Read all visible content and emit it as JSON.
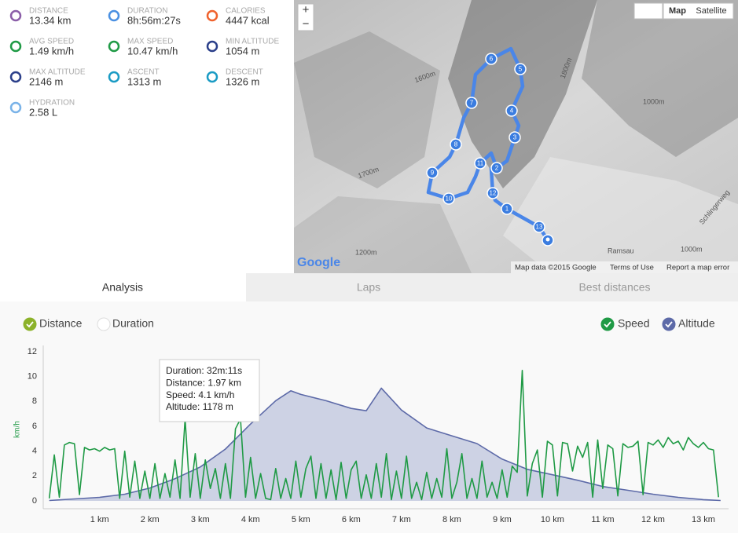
{
  "stats": [
    {
      "label": "DISTANCE",
      "value": "13.34 km"
    },
    {
      "label": "DURATION",
      "value": "8h:56m:27s"
    },
    {
      "label": "CALORIES",
      "value": "4447 kcal"
    },
    {
      "label": "AVG SPEED",
      "value": "1.49 km/h"
    },
    {
      "label": "MAX SPEED",
      "value": "10.47 km/h"
    },
    {
      "label": "MIN ALTITUDE",
      "value": "1054 m"
    },
    {
      "label": "MAX ALTITUDE",
      "value": "2146 m"
    },
    {
      "label": "ASCENT",
      "value": "1313 m"
    },
    {
      "label": "DESCENT",
      "value": "1326 m"
    },
    {
      "label": "HYDRATION",
      "value": "2.58 L"
    }
  ],
  "map": {
    "zoom_in": "+",
    "zoom_out": "−",
    "types": [
      "Map",
      "Satellite"
    ],
    "logo": "Google",
    "attribution": [
      "Map data ©2015 Google",
      "Terms of Use",
      "Report a map error"
    ],
    "place_labels": [
      "Ramsau",
      "Schlingerweg",
      "1000m",
      "1200m",
      "1600m",
      "1800m",
      "1700m",
      "1000m"
    ],
    "markers": [
      "1",
      "2",
      "3",
      "4",
      "5",
      "6",
      "7",
      "8",
      "9",
      "10",
      "11",
      "12",
      "13"
    ]
  },
  "tabs": [
    "Analysis",
    "Laps",
    "Best distances"
  ],
  "chart_data": {
    "type": "line",
    "x_modes": [
      "Distance",
      "Duration"
    ],
    "ylabel": "km/h",
    "xlim": [
      -0.12,
      13.5
    ],
    "xticks": [
      {
        "value": 1,
        "label": "1 km"
      },
      {
        "value": 2,
        "label": "2 km"
      },
      {
        "value": 3,
        "label": "3 km"
      },
      {
        "value": 4,
        "label": "4 km"
      },
      {
        "value": 5,
        "label": "5 km"
      },
      {
        "value": 6,
        "label": "6 km"
      },
      {
        "value": 7,
        "label": "7 km"
      },
      {
        "value": 8,
        "label": "8 km"
      },
      {
        "value": 9,
        "label": "9 km"
      },
      {
        "value": 10,
        "label": "10 km"
      },
      {
        "value": 11,
        "label": "11 km"
      },
      {
        "value": 12,
        "label": "12 km"
      },
      {
        "value": 13,
        "label": "13 km"
      }
    ],
    "ylim": [
      0,
      12
    ],
    "yticks": [
      0,
      2,
      4,
      6,
      8,
      10,
      12
    ],
    "y2lim": [
      1050,
      2500
    ],
    "grid": false,
    "series": [
      {
        "name": "Speed",
        "color": "#1f9a45",
        "axis": "y",
        "x": [
          0,
          0.1,
          0.2,
          0.3,
          0.4,
          0.5,
          0.6,
          0.7,
          0.8,
          0.9,
          1,
          1.1,
          1.2,
          1.3,
          1.4,
          1.5,
          1.6,
          1.7,
          1.8,
          1.9,
          2,
          2.1,
          2.2,
          2.3,
          2.4,
          2.5,
          2.6,
          2.7,
          2.8,
          2.9,
          3,
          3.1,
          3.2,
          3.3,
          3.4,
          3.5,
          3.6,
          3.7,
          3.8,
          3.9,
          4,
          4.1,
          4.2,
          4.3,
          4.4,
          4.5,
          4.6,
          4.7,
          4.8,
          4.9,
          5,
          5.1,
          5.2,
          5.3,
          5.4,
          5.5,
          5.6,
          5.7,
          5.8,
          5.9,
          6,
          6.1,
          6.2,
          6.3,
          6.4,
          6.5,
          6.6,
          6.7,
          6.8,
          6.9,
          7,
          7.1,
          7.2,
          7.3,
          7.4,
          7.5,
          7.6,
          7.7,
          7.8,
          7.9,
          8,
          8.1,
          8.2,
          8.3,
          8.4,
          8.5,
          8.6,
          8.7,
          8.8,
          8.9,
          9,
          9.1,
          9.2,
          9.3,
          9.4,
          9.5,
          9.6,
          9.7,
          9.8,
          9.9,
          10,
          10.1,
          10.2,
          10.3,
          10.4,
          10.5,
          10.6,
          10.7,
          10.8,
          10.9,
          11,
          11.1,
          11.2,
          11.3,
          11.4,
          11.5,
          11.6,
          11.7,
          11.8,
          11.9,
          12,
          12.1,
          12.2,
          12.3,
          12.4,
          12.5,
          12.6,
          12.7,
          12.8,
          12.9,
          13,
          13.1,
          13.2,
          13.3
        ],
        "values": [
          0.2,
          3.7,
          0.3,
          4.5,
          4.7,
          4.6,
          0.5,
          4.3,
          4.1,
          4.2,
          4.0,
          4.3,
          4.1,
          4.2,
          0.2,
          4.0,
          0.3,
          3.2,
          0.2,
          2.4,
          0.2,
          3.0,
          0.2,
          2.2,
          0.3,
          3.3,
          0.2,
          6.6,
          0.3,
          3.8,
          0.2,
          3.3,
          1.0,
          2.6,
          0.2,
          3.0,
          0.2,
          5.8,
          6.6,
          0.3,
          3.5,
          0.2,
          2.2,
          0.2,
          0.1,
          2.6,
          0.2,
          1.8,
          0.2,
          3.2,
          0.3,
          2.6,
          3.6,
          0.2,
          3.0,
          0.2,
          2.5,
          0.1,
          3.1,
          0.2,
          2.5,
          3.2,
          0.2,
          2.1,
          0.2,
          3.0,
          0.3,
          3.8,
          0.1,
          2.4,
          0.2,
          3.6,
          0.2,
          1.5,
          0.1,
          2.3,
          0.2,
          1.8,
          0.3,
          4.2,
          0.2,
          1.5,
          3.8,
          0.2,
          1.8,
          0.2,
          3.2,
          0.3,
          1.5,
          0.2,
          2.5,
          0.3,
          2.8,
          2.3,
          10.5,
          0.4,
          3.0,
          4.1,
          0.3,
          4.8,
          4.5,
          0.4,
          4.7,
          4.6,
          2.4,
          4.4,
          3.5,
          4.7,
          0.3,
          4.9,
          1.0,
          4.5,
          4.2,
          0.4,
          4.6,
          4.3,
          4.4,
          4.8,
          0.5,
          4.7,
          4.5,
          4.9,
          4.3,
          5.1,
          4.6,
          4.8,
          4.1,
          5.1,
          4.6,
          4.3,
          4.7,
          4.2,
          4.1,
          0.3
        ]
      },
      {
        "name": "Altitude",
        "color": "#5d6aa8",
        "axis": "y2",
        "x": [
          0,
          0.5,
          1,
          1.5,
          2,
          2.5,
          3,
          3.5,
          4,
          4.5,
          4.8,
          5,
          5.5,
          6,
          6.3,
          6.6,
          7,
          7.5,
          8,
          8.5,
          9,
          9.5,
          10,
          10.5,
          11,
          11.5,
          12,
          12.5,
          13,
          13.34
        ],
        "values": [
          1054,
          1069,
          1084,
          1115,
          1175,
          1266,
          1380,
          1554,
          1797,
          2024,
          2120,
          2085,
          2024,
          1949,
          1926,
          2146,
          1933,
          1759,
          1683,
          1607,
          1456,
          1357,
          1304,
          1251,
          1190,
          1153,
          1115,
          1084,
          1062,
          1054
        ]
      }
    ],
    "tooltip": [
      "Duration: 32m:11s",
      "Distance: 1.97 km",
      "Speed: 4.1 km/h",
      "Altitude: 1178 m"
    ]
  }
}
